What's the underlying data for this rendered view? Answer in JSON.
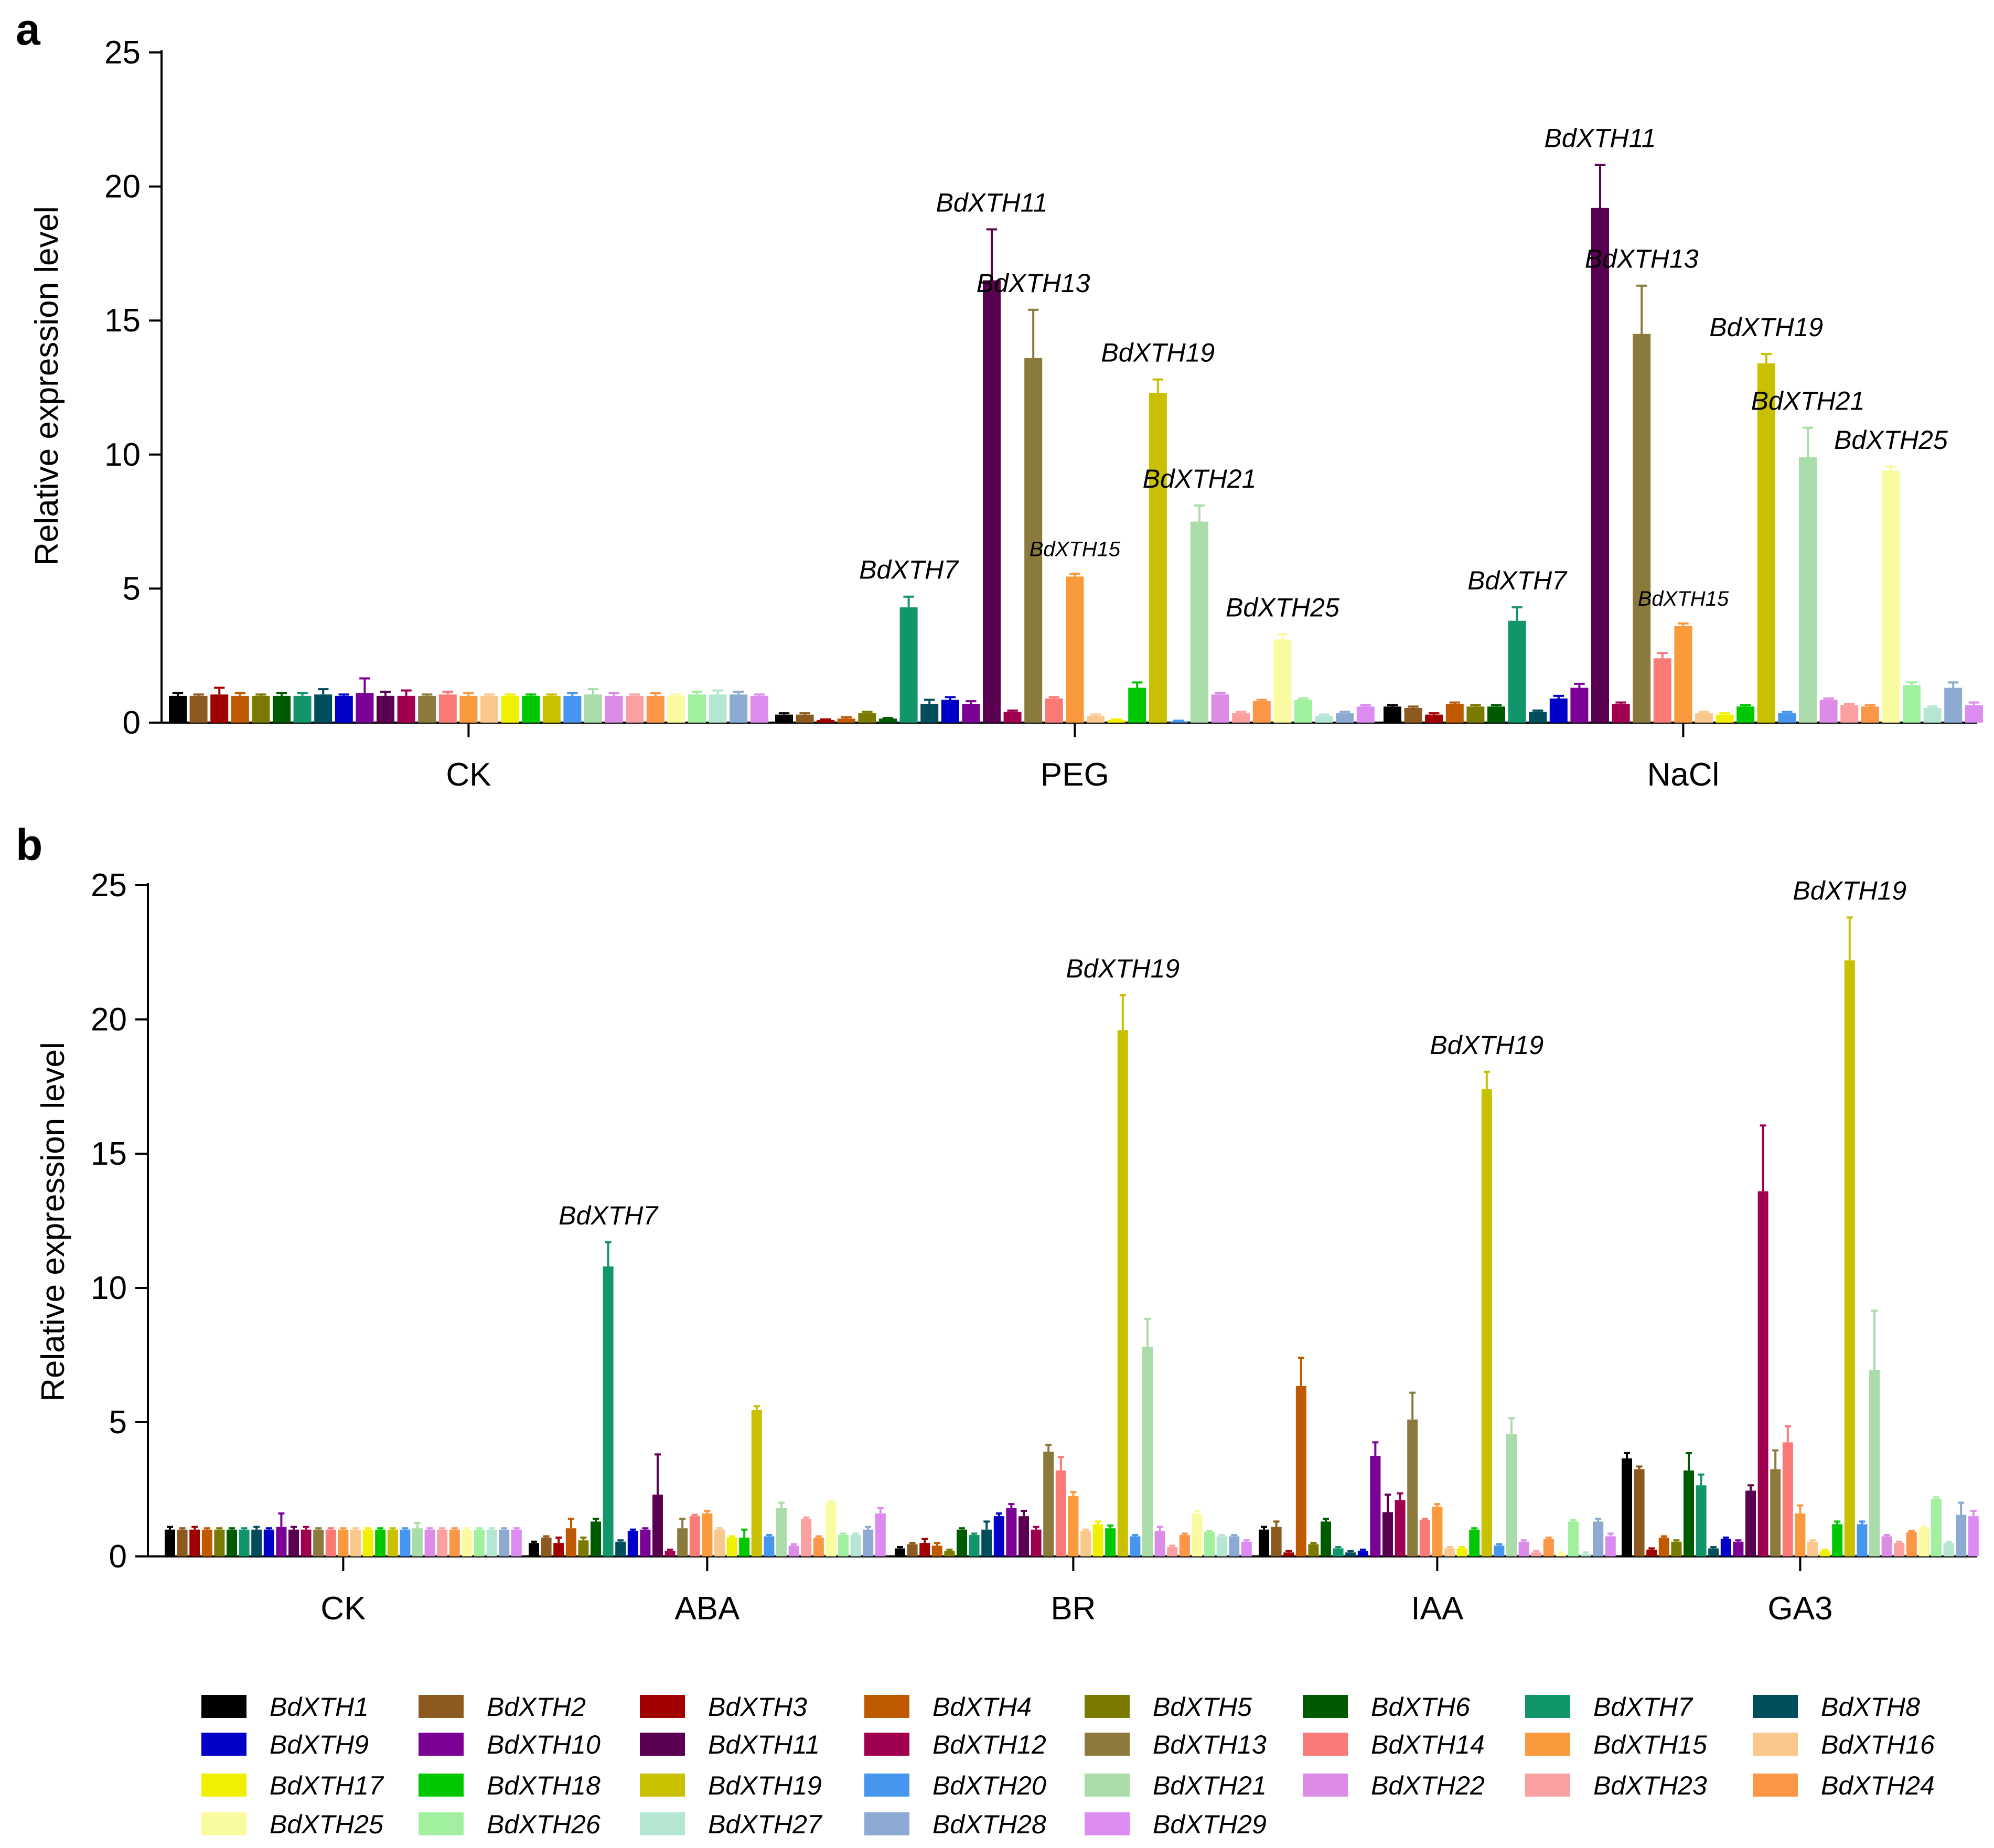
{
  "genes": [
    "BdXTH1",
    "BdXTH2",
    "BdXTH3",
    "BdXTH4",
    "BdXTH5",
    "BdXTH6",
    "BdXTH7",
    "BdXTH8",
    "BdXTH9",
    "BdXTH10",
    "BdXTH11",
    "BdXTH12",
    "BdXTH13",
    "BdXTH14",
    "BdXTH15",
    "BdXTH16",
    "BdXTH17",
    "BdXTH18",
    "BdXTH19",
    "BdXTH20",
    "BdXTH21",
    "BdXTH22",
    "BdXTH23",
    "BdXTH24",
    "BdXTH25",
    "BdXTH26",
    "BdXTH27",
    "BdXTH28",
    "BdXTH29"
  ],
  "colors": [
    "#000000",
    "#8c5a1f",
    "#a00000",
    "#c05a00",
    "#7a7a00",
    "#005a00",
    "#11956a",
    "#004d5c",
    "#0000c8",
    "#7a0096",
    "#5a0050",
    "#a00050",
    "#8c7a3c",
    "#fa7a78",
    "#fa9a3c",
    "#fac88c",
    "#f0f000",
    "#00c800",
    "#c8c000",
    "#4696f0",
    "#aadcaa",
    "#dc8ce6",
    "#faa0a0",
    "#fa9646",
    "#fafaa0",
    "#a0f0a0",
    "#b4e6d2",
    "#8caad2",
    "#dc8cf0"
  ],
  "panels": {
    "a": "a",
    "b": "b"
  },
  "legend": {
    "labels": [
      "BdXTH1",
      "BdXTH2",
      "BdXTH3",
      "BdXTH4",
      "BdXTH5",
      "BdXTH6",
      "BdXTH7",
      "BdXTH8",
      "BdXTH9",
      "BdXTH10",
      "BdXTH11",
      "BdXTH12",
      "BdXTH13",
      "BdXTH14",
      "BdXTH15",
      "BdXTH16",
      "BdXTH17",
      "BdXTH18",
      "BdXTH19",
      "BdXTH20",
      "BdXTH21",
      "BdXTH22",
      "BdXTH23",
      "BdXTH24",
      "BdXTH25",
      "BdXTH26",
      "BdXTH27",
      "BdXTH28",
      "BdXTH29"
    ]
  },
  "chart_data": [
    {
      "panel": "a",
      "type": "bar",
      "title": "",
      "xlabel": "",
      "ylabel": "Relative expression level",
      "ylim": [
        0,
        25
      ],
      "yticks": [
        0,
        5,
        10,
        15,
        20,
        25
      ],
      "categories": [
        "CK",
        "PEG",
        "NaCl"
      ],
      "series_values": [
        [
          1.0,
          1.0,
          1.05,
          1.0,
          1.0,
          1.0,
          1.0,
          1.05,
          1.0,
          1.1,
          1.0,
          1.0,
          1.0,
          1.05,
          1.0,
          1.0,
          1.0,
          1.0,
          1.0,
          1.0,
          1.05,
          1.0,
          1.0,
          1.0,
          1.0,
          1.05,
          1.05,
          1.05,
          1.0
        ],
        [
          0.3,
          0.3,
          0.1,
          0.15,
          0.35,
          0.15,
          4.3,
          0.7,
          0.85,
          0.7,
          16.5,
          0.4,
          13.6,
          0.9,
          5.45,
          0.25,
          0.1,
          1.3,
          12.3,
          0.05,
          7.5,
          1.05,
          0.35,
          0.8,
          3.1,
          0.85,
          0.25,
          0.35,
          0.6
        ],
        [
          0.6,
          0.55,
          0.3,
          0.7,
          0.6,
          0.6,
          3.8,
          0.4,
          0.9,
          1.3,
          19.2,
          0.7,
          14.5,
          2.4,
          3.6,
          0.35,
          0.3,
          0.6,
          13.4,
          0.35,
          9.9,
          0.85,
          0.65,
          0.6,
          9.4,
          1.4,
          0.55,
          1.3,
          0.65
        ]
      ],
      "series_errors": [
        [
          0.1,
          0.05,
          0.25,
          0.1,
          0.05,
          0.1,
          0.1,
          0.2,
          0.05,
          0.55,
          0.15,
          0.2,
          0.05,
          0.1,
          0.1,
          0.05,
          0.05,
          0.05,
          0.05,
          0.1,
          0.2,
          0.1,
          0.05,
          0.1,
          0.05,
          0.1,
          0.15,
          0.1,
          0.05
        ],
        [
          0.05,
          0.05,
          0.02,
          0.05,
          0.05,
          0.02,
          0.4,
          0.15,
          0.1,
          0.1,
          1.9,
          0.05,
          1.8,
          0.05,
          0.1,
          0.05,
          0.02,
          0.2,
          0.5,
          0.02,
          0.6,
          0.05,
          0.05,
          0.05,
          0.2,
          0.05,
          0.05,
          0.05,
          0.05
        ],
        [
          0.05,
          0.05,
          0.05,
          0.05,
          0.05,
          0.05,
          0.5,
          0.05,
          0.1,
          0.15,
          1.6,
          0.05,
          1.8,
          0.2,
          0.1,
          0.05,
          0.05,
          0.05,
          0.35,
          0.05,
          1.1,
          0.05,
          0.05,
          0.05,
          0.15,
          0.1,
          0.05,
          0.2,
          0.1
        ]
      ],
      "annotations": [
        {
          "group": 1,
          "gene": 6,
          "text": "BdXTH7"
        },
        {
          "group": 1,
          "gene": 10,
          "text": "BdXTH11"
        },
        {
          "group": 1,
          "gene": 12,
          "text": "BdXTH13"
        },
        {
          "group": 1,
          "gene": 14,
          "text": "BdXTH15",
          "small": true
        },
        {
          "group": 1,
          "gene": 18,
          "text": "BdXTH19"
        },
        {
          "group": 1,
          "gene": 20,
          "text": "BdXTH21"
        },
        {
          "group": 1,
          "gene": 24,
          "text": "BdXTH25"
        },
        {
          "group": 2,
          "gene": 6,
          "text": "BdXTH7"
        },
        {
          "group": 2,
          "gene": 10,
          "text": "BdXTH11"
        },
        {
          "group": 2,
          "gene": 12,
          "text": "BdXTH13"
        },
        {
          "group": 2,
          "gene": 14,
          "text": "BdXTH15",
          "small": true
        },
        {
          "group": 2,
          "gene": 18,
          "text": "BdXTH19"
        },
        {
          "group": 2,
          "gene": 20,
          "text": "BdXTH21"
        },
        {
          "group": 2,
          "gene": 24,
          "text": "BdXTH25"
        }
      ]
    },
    {
      "panel": "b",
      "type": "bar",
      "title": "",
      "xlabel": "",
      "ylabel": "Relative expression level",
      "ylim": [
        0,
        25
      ],
      "yticks": [
        0,
        5,
        10,
        15,
        20,
        25
      ],
      "categories": [
        "CK",
        "ABA",
        "BR",
        "IAA",
        "GA3"
      ],
      "series_values": [
        [
          1.0,
          1.0,
          1.0,
          1.0,
          1.0,
          1.0,
          1.0,
          1.0,
          1.0,
          1.1,
          1.0,
          1.0,
          1.0,
          1.0,
          1.0,
          1.0,
          1.0,
          1.0,
          1.0,
          1.0,
          1.05,
          1.0,
          1.0,
          1.0,
          1.0,
          1.0,
          1.0,
          1.0,
          1.0
        ],
        [
          0.5,
          0.7,
          0.5,
          1.05,
          0.6,
          1.3,
          10.8,
          0.55,
          0.95,
          1.0,
          2.3,
          0.2,
          1.05,
          1.5,
          1.6,
          1.0,
          0.7,
          0.7,
          5.45,
          0.75,
          1.8,
          0.4,
          1.4,
          0.7,
          2.0,
          0.8,
          0.8,
          1.0,
          1.6
        ],
        [
          0.3,
          0.45,
          0.5,
          0.4,
          0.2,
          1.0,
          0.8,
          1.0,
          1.5,
          1.8,
          1.5,
          1.0,
          3.9,
          3.2,
          2.25,
          0.95,
          1.2,
          1.05,
          19.6,
          0.75,
          7.8,
          0.95,
          0.35,
          0.8,
          1.6,
          0.9,
          0.75,
          0.75,
          0.55
        ],
        [
          1.0,
          1.1,
          0.15,
          6.35,
          0.45,
          1.3,
          0.3,
          0.15,
          0.2,
          3.75,
          1.65,
          2.1,
          5.1,
          1.35,
          1.85,
          0.3,
          0.3,
          1.0,
          17.4,
          0.4,
          4.55,
          0.55,
          0.15,
          0.65,
          0.1,
          1.3,
          0.1,
          1.3,
          0.75
        ],
        [
          3.65,
          3.25,
          0.25,
          0.7,
          0.55,
          3.2,
          2.65,
          0.3,
          0.65,
          0.55,
          2.45,
          13.6,
          3.25,
          4.25,
          1.6,
          0.55,
          0.2,
          1.2,
          22.2,
          1.2,
          6.95,
          0.75,
          0.5,
          0.9,
          1.05,
          2.15,
          0.5,
          1.55,
          1.5
        ]
      ],
      "series_errors": [
        [
          0.1,
          0.05,
          0.1,
          0.05,
          0.05,
          0.05,
          0.05,
          0.1,
          0.05,
          0.5,
          0.1,
          0.1,
          0.05,
          0.05,
          0.05,
          0.05,
          0.05,
          0.05,
          0.05,
          0.05,
          0.2,
          0.05,
          0.05,
          0.05,
          0.05,
          0.05,
          0.05,
          0.05,
          0.05
        ],
        [
          0.05,
          0.05,
          0.2,
          0.35,
          0.1,
          0.1,
          0.9,
          0.05,
          0.05,
          0.05,
          1.5,
          0.05,
          0.35,
          0.05,
          0.1,
          0.05,
          0.05,
          0.3,
          0.15,
          0.05,
          0.2,
          0.05,
          0.05,
          0.05,
          0.05,
          0.05,
          0.05,
          0.1,
          0.2
        ],
        [
          0.05,
          0.05,
          0.15,
          0.1,
          0.05,
          0.05,
          0.05,
          0.3,
          0.1,
          0.15,
          0.2,
          0.1,
          0.25,
          0.5,
          0.15,
          0.05,
          0.1,
          0.1,
          1.3,
          0.05,
          1.05,
          0.15,
          0.05,
          0.05,
          0.1,
          0.05,
          0.05,
          0.05,
          0.05
        ],
        [
          0.1,
          0.2,
          0.05,
          1.05,
          0.05,
          0.1,
          0.05,
          0.05,
          0.05,
          0.5,
          0.65,
          0.25,
          1.0,
          0.05,
          0.1,
          0.05,
          0.05,
          0.05,
          0.65,
          0.05,
          0.6,
          0.05,
          0.05,
          0.05,
          0.05,
          0.05,
          0.05,
          0.1,
          0.1
        ],
        [
          0.2,
          0.1,
          0.05,
          0.05,
          0.05,
          0.65,
          0.4,
          0.05,
          0.05,
          0.05,
          0.2,
          2.45,
          0.7,
          0.6,
          0.3,
          0.05,
          0.05,
          0.1,
          1.6,
          0.1,
          2.2,
          0.05,
          0.05,
          0.05,
          0.05,
          0.05,
          0.05,
          0.45,
          0.2
        ]
      ],
      "annotations": [
        {
          "group": 1,
          "gene": 6,
          "text": "BdXTH7"
        },
        {
          "group": 2,
          "gene": 18,
          "text": "BdXTH19"
        },
        {
          "group": 3,
          "gene": 18,
          "text": "BdXTH19"
        },
        {
          "group": 4,
          "gene": 18,
          "text": "BdXTH19"
        }
      ]
    }
  ]
}
